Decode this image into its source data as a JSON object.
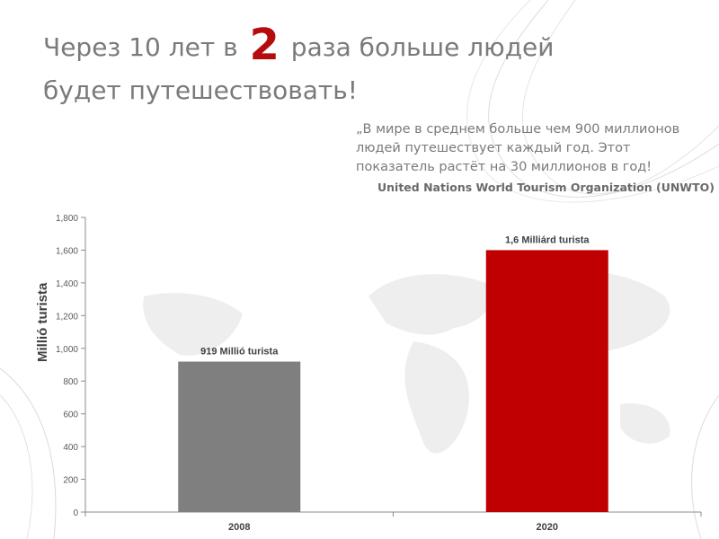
{
  "slide": {
    "title_before": "Через 10 лет в",
    "title_number": "2",
    "title_after": "раза больше людей будет путешествовать!",
    "quote": "„В мире в среднем больше чем 900 миллионов людей путешествует каждый год. Этот показатель растёт на 30 миллионов в год!",
    "quote_source": "United Nations World Tourism Organization (UNWTO)",
    "accent_color": "#b50d0d",
    "text_color": "#7a7a7a"
  },
  "chart_data": {
    "type": "bar",
    "categories": [
      "2008",
      "2020"
    ],
    "values": [
      919,
      1600
    ],
    "data_labels": [
      "919 Millió  turista",
      "1,6 Milliárd  turista"
    ],
    "bar_colors": [
      "#7f7f7f",
      "#c00000"
    ],
    "ylabel": "Millió turista",
    "xlabel": "",
    "title": "",
    "ylim": [
      0,
      1800
    ],
    "yticks": [
      0,
      200,
      400,
      600,
      800,
      1000,
      1200,
      1400,
      1600,
      1800
    ],
    "ytick_labels": [
      "0",
      "200",
      "400",
      "600",
      "800",
      "1,000",
      "1,200",
      "1,400",
      "1,600",
      "1,800"
    ],
    "grid": false,
    "legend": "none"
  }
}
